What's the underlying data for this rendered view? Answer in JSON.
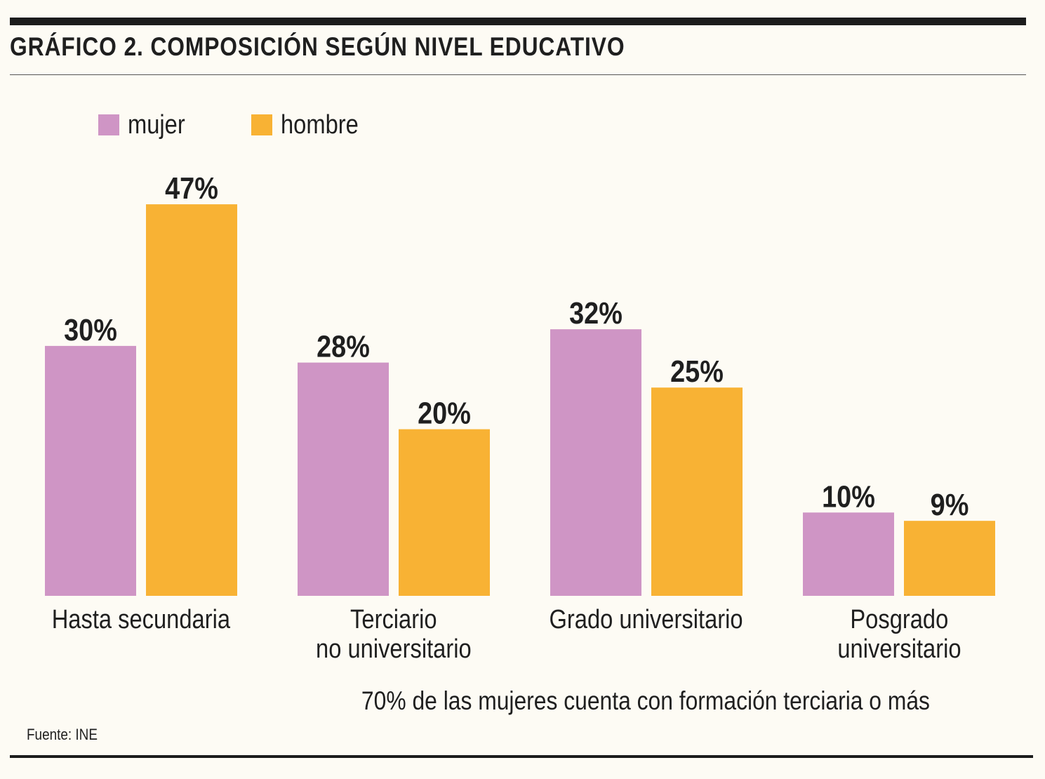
{
  "header": {
    "title": "GRÁFICO 2. COMPOSICIÓN SEGÚN NIVEL EDUCATIVO"
  },
  "legend": [
    {
      "label": "mujer",
      "color": "#cf95c5"
    },
    {
      "label": "hombre",
      "color": "#f8b234"
    }
  ],
  "chart_data": {
    "type": "bar",
    "title": "GRÁFICO 2. COMPOSICIÓN SEGÚN NIVEL EDUCATIVO",
    "categories": [
      [
        "Hasta secundaria"
      ],
      [
        "Terciario",
        "no universitario"
      ],
      [
        "Grado universitario"
      ],
      [
        "Posgrado",
        "universitario"
      ]
    ],
    "series": [
      {
        "name": "mujer",
        "color": "#cf95c5",
        "values": [
          30,
          28,
          32,
          10
        ],
        "labels": [
          "30%",
          "28%",
          "32%",
          "10%"
        ]
      },
      {
        "name": "hombre",
        "color": "#f8b234",
        "values": [
          47,
          20,
          25,
          9
        ],
        "labels": [
          "47%",
          "20%",
          "25%",
          "9%"
        ]
      }
    ],
    "unit": "%",
    "xlabel": "",
    "ylabel": "",
    "grid": false,
    "legend_position": "top-left"
  },
  "note": "70% de las mujeres cuenta con formación terciaria o más",
  "source": "Fuente: INE"
}
